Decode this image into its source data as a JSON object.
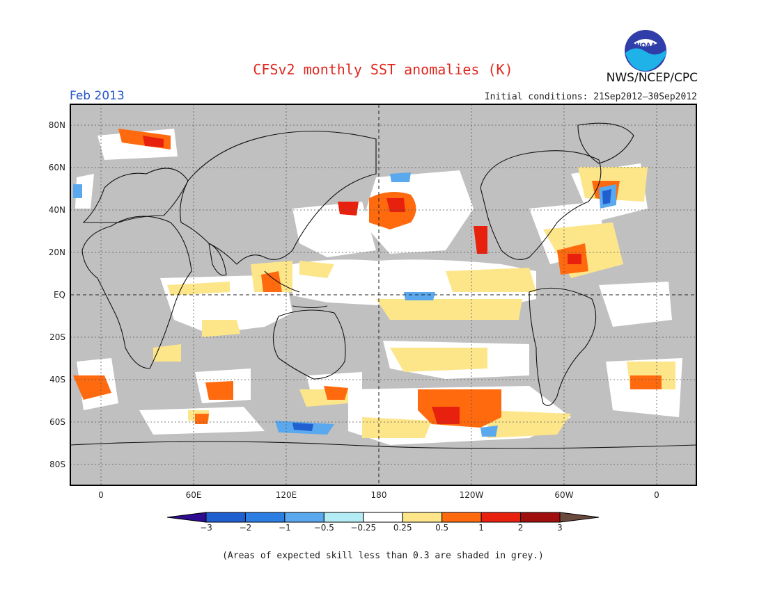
{
  "title": "CFSv2 monthly SST anomalies (K)",
  "agency": "NWS/NCEP/CPC",
  "logo_text": "NOAA",
  "valid_month": "Feb 2013",
  "initial_conditions": "Initial conditions: 21Sep2012–30Sep2012",
  "footnote": "(Areas of expected skill less than 0.3 are shaded in grey.)",
  "map": {
    "lat_labels": [
      "80N",
      "60N",
      "40N",
      "20N",
      "EQ",
      "20S",
      "40S",
      "60S",
      "80S"
    ],
    "lon_labels": [
      "0",
      "60E",
      "120E",
      "180",
      "120W",
      "60W",
      "0"
    ],
    "low_skill_color": "#c0c0c0",
    "ocean_color": "#ffffff"
  },
  "colorbar": {
    "labels": [
      "−3",
      "−2",
      "−1",
      "−0.5",
      "−0.25",
      "0.25",
      "0.5",
      "1",
      "2",
      "3"
    ],
    "colors": [
      "#2e0b8f",
      "#1f5fd0",
      "#2c7ee3",
      "#5aa8ee",
      "#b3ecf5",
      "#ffffff",
      "#fde68a",
      "#ff6a0e",
      "#e8210e",
      "#a10e0e",
      "#6b4a3e"
    ]
  }
}
